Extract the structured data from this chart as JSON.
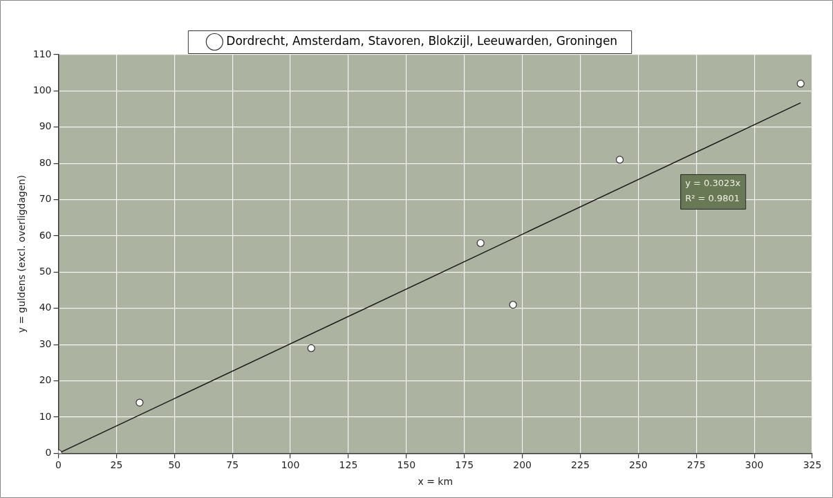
{
  "chart_data": {
    "type": "scatter",
    "xlabel": "x = km",
    "ylabel": "y = guldens (excl. overligdagen)",
    "series": [
      {
        "name": "Dordrecht, Amsterdam, Stavoren, Blokzijl, Leeuwarden, Groningen",
        "color": "#ffffff",
        "x": [
          0,
          35,
          109,
          182,
          196,
          242,
          320
        ],
        "values": [
          0,
          14,
          29,
          58,
          41,
          81,
          102
        ]
      },
      {
        "type": "line",
        "color": "#1a1a1a",
        "x": [
          0,
          320
        ],
        "values": [
          0,
          96.7
        ],
        "marker": "none"
      }
    ],
    "xlim": [
      0,
      325
    ],
    "xticks": [
      0,
      25,
      50,
      75,
      100,
      125,
      150,
      175,
      200,
      225,
      250,
      275,
      300,
      325
    ],
    "ylim": [
      0,
      110
    ],
    "yticks": [
      0,
      10,
      20,
      30,
      40,
      50,
      60,
      70,
      80,
      90,
      100,
      110
    ],
    "annotations": [
      "y = 0.3023x",
      "R² = 0.9801"
    ],
    "grid": true,
    "legend": "top",
    "marker": "circle"
  }
}
